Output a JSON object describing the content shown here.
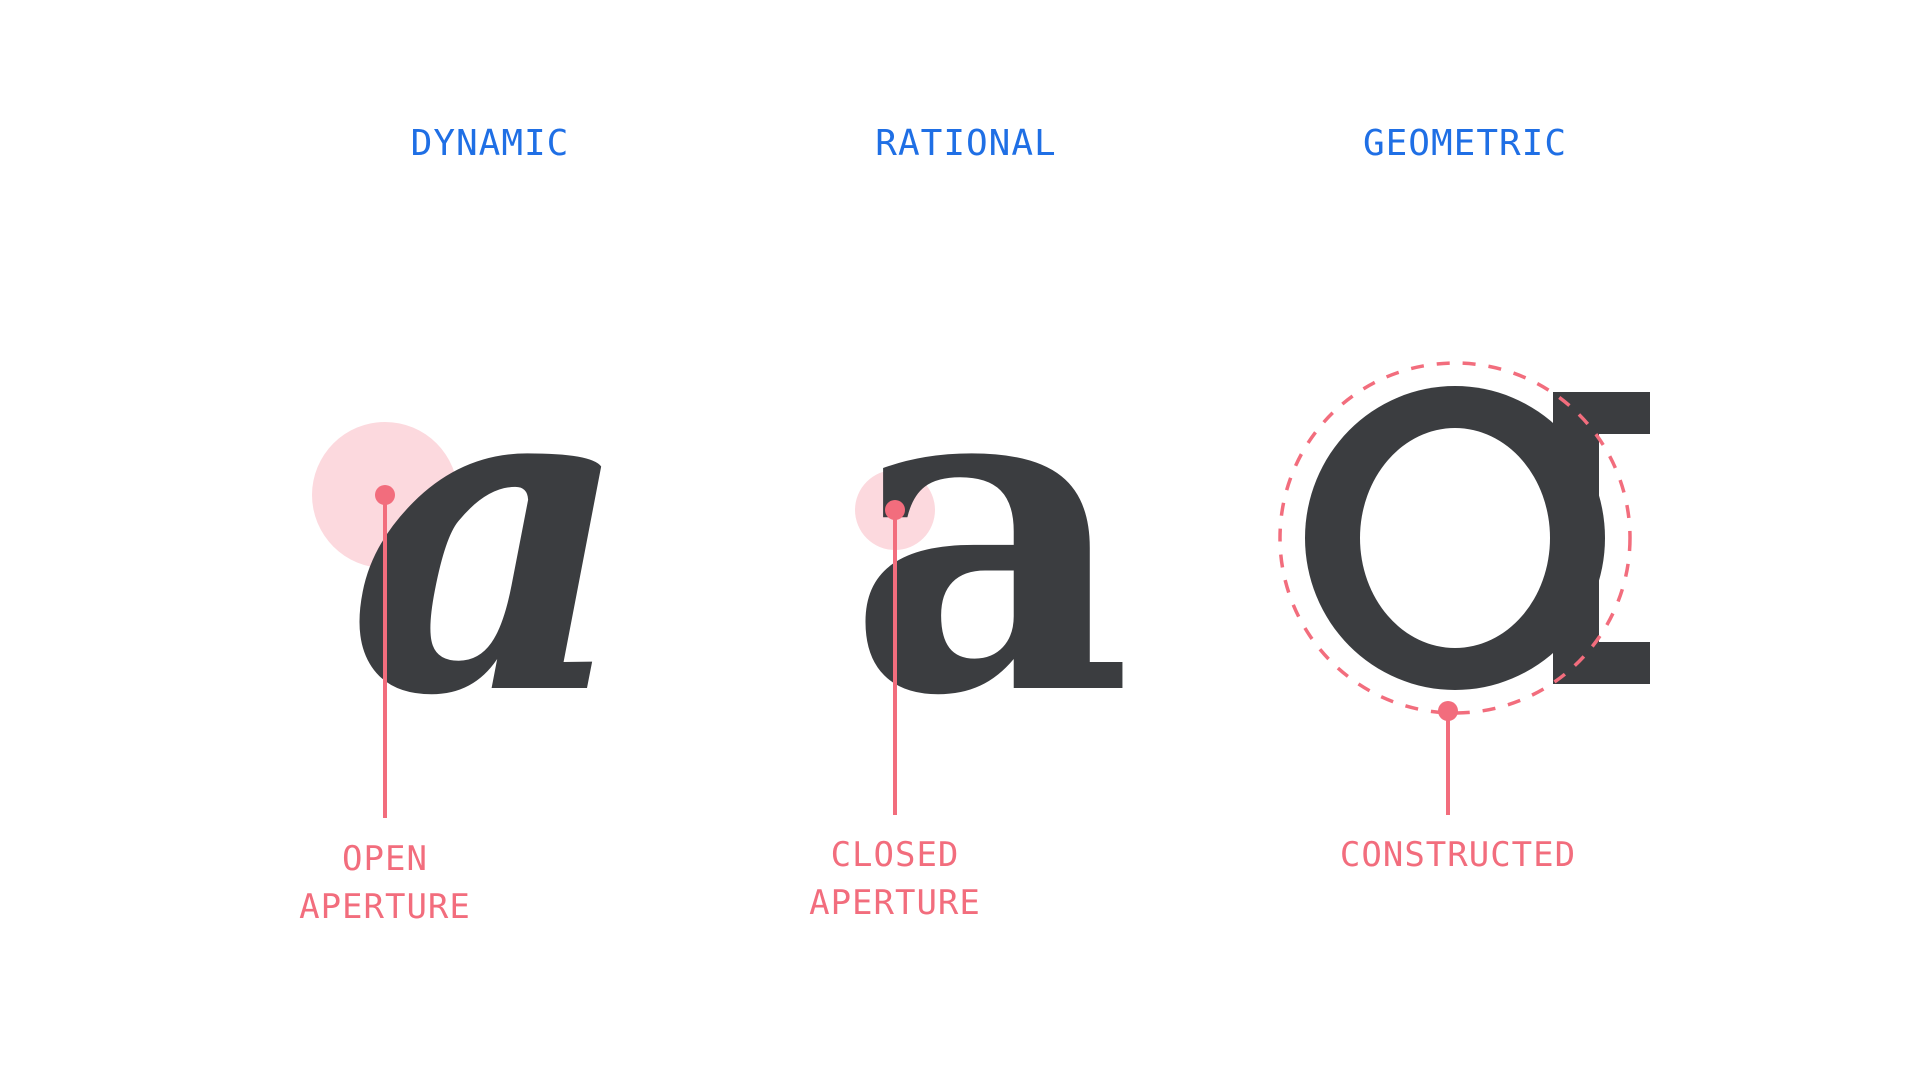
{
  "colors": {
    "background": "#ffffff",
    "heading": "#1f6fe5",
    "glyph": "#3b3d40",
    "annotation": "#f26d7d",
    "highlight": "#fcd9de"
  },
  "columns": [
    {
      "heading": "DYNAMIC",
      "glyph": "a",
      "annotation_lines": [
        "OPEN",
        "APERTURE"
      ]
    },
    {
      "heading": "RATIONAL",
      "glyph": "a",
      "annotation_lines": [
        "CLOSED",
        "APERTURE"
      ]
    },
    {
      "heading": "GEOMETRIC",
      "glyph": "ɑ",
      "annotation_lines": [
        "CONSTRUCTED"
      ]
    }
  ]
}
